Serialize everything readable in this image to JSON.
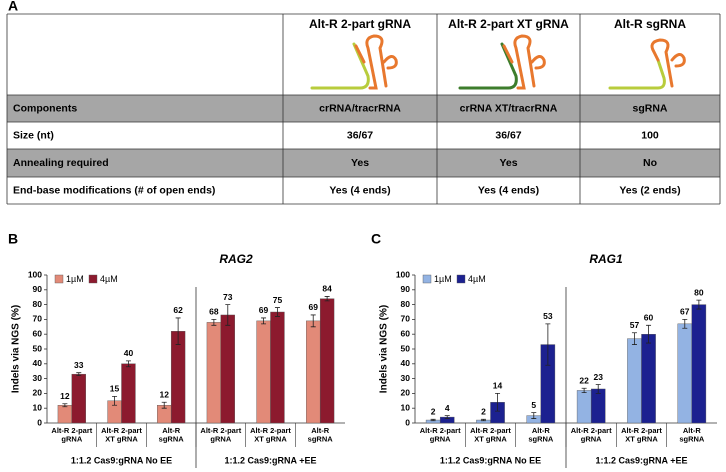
{
  "panel_labels": [
    "A",
    "B",
    "C"
  ],
  "table": {
    "header": [
      "Alt-R 2-part gRNA",
      "Alt-R 2-part XT gRNA",
      "Alt-R sgRNA"
    ],
    "rows": [
      [
        "Components",
        "crRNA/tracrRNA",
        "crRNA XT/tracrRNA",
        "sgRNA"
      ],
      [
        "Size (nt)",
        "36/67",
        "36/67",
        "100"
      ],
      [
        "Annealing required",
        "Yes",
        "Yes",
        "No"
      ],
      [
        "End-base modifications (# of open ends)",
        "Yes (4 ends)",
        "Yes (4 ends)",
        "Yes (2 ends)"
      ]
    ]
  },
  "chart_data": [
    {
      "type": "bar",
      "title": "RAG2",
      "y_label": "Indels via NGS (%)",
      "categories": [
        "Alt-R 2-part\ngRNA",
        "Alt-R 2-part\nXT gRNA",
        "Alt-R\nsgRNA",
        "Alt-R 2-part\ngRNA",
        "Alt-R 2-part\nXT gRNA",
        "Alt-R\nsgRNA"
      ],
      "group_labels": [
        "1:1.2 Cas9:gRNA No EE",
        "1:1.2 Cas9:gRNA +EE"
      ],
      "series": [
        {
          "name": "1µM",
          "color": "#e28a78",
          "values": [
            12,
            15,
            12,
            68,
            69,
            69
          ],
          "errors": [
            1,
            3,
            2,
            2,
            2,
            4
          ]
        },
        {
          "name": "4µM",
          "color": "#8c1a2e",
          "values": [
            33,
            40,
            62,
            73,
            75,
            84
          ],
          "errors": [
            1,
            2,
            9,
            7,
            3,
            1.5
          ]
        }
      ],
      "ylim": [
        0,
        100
      ],
      "yticks": [
        0,
        10,
        20,
        30,
        40,
        50,
        60,
        70,
        80,
        90,
        100
      ],
      "legend": "top-left"
    },
    {
      "type": "bar",
      "title": "RAG1",
      "y_label": "Indels via NGS (%)",
      "categories": [
        "Alt-R 2-part\ngRNA",
        "Alt-R 2-part\nXT gRNA",
        "Alt-R\nsgRNA",
        "Alt-R 2-part\ngRNA",
        "Alt-R 2-part\nXT gRNA",
        "Alt-R\nsgRNA"
      ],
      "group_labels": [
        "1:1.2 Cas9:gRNA No EE",
        "1:1.2 Cas9:gRNA +EE"
      ],
      "series": [
        {
          "name": "1µM",
          "color": "#93b3e3",
          "values": [
            2,
            2,
            5,
            22,
            57,
            67
          ],
          "errors": [
            0.5,
            0.5,
            2,
            1.5,
            4,
            3
          ]
        },
        {
          "name": "4µM",
          "color": "#1c2190",
          "values": [
            4,
            14,
            53,
            23,
            60,
            80
          ],
          "errors": [
            1,
            6,
            14,
            3,
            6,
            3
          ]
        }
      ],
      "ylim": [
        0,
        100
      ],
      "yticks": [
        0,
        10,
        20,
        30,
        40,
        50,
        60,
        70,
        80,
        90,
        100
      ],
      "legend": "top-left"
    }
  ]
}
